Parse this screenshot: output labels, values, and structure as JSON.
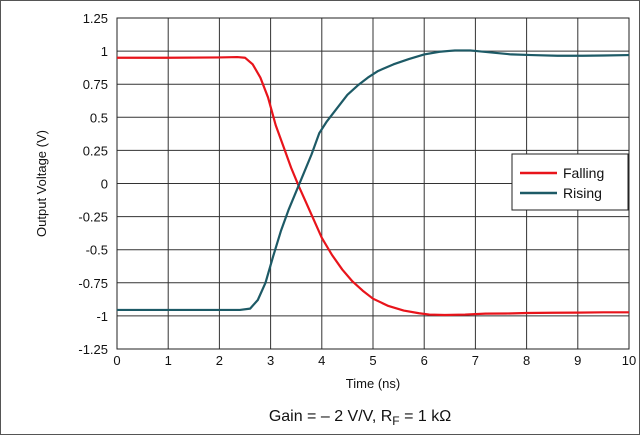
{
  "chart_data": {
    "type": "line",
    "xlabel": "Time (ns)",
    "ylabel": "Output Voltage (V)",
    "xlim": [
      0,
      10
    ],
    "ylim": [
      -1.25,
      1.25
    ],
    "x_ticks": [
      "0",
      "1",
      "2",
      "3",
      "4",
      "5",
      "6",
      "7",
      "8",
      "9",
      "10"
    ],
    "y_ticks": [
      "1.25",
      "1",
      "0.75",
      "0.5",
      "0.25",
      "0",
      "-0.25",
      "-0.5",
      "-0.75",
      "-1",
      "-1.25"
    ],
    "grid": true,
    "legend_position": "right",
    "series": [
      {
        "name": "Falling",
        "color": "#e8141b",
        "points": [
          [
            0,
            0.95
          ],
          [
            1,
            0.95
          ],
          [
            2,
            0.952
          ],
          [
            2.35,
            0.955
          ],
          [
            2.5,
            0.95
          ],
          [
            2.65,
            0.9
          ],
          [
            2.8,
            0.8
          ],
          [
            2.95,
            0.65
          ],
          [
            3.1,
            0.44
          ],
          [
            3.25,
            0.28
          ],
          [
            3.4,
            0.12
          ],
          [
            3.55,
            -0.02
          ],
          [
            3.7,
            -0.15
          ],
          [
            3.85,
            -0.28
          ],
          [
            4.0,
            -0.41
          ],
          [
            4.2,
            -0.54
          ],
          [
            4.4,
            -0.65
          ],
          [
            4.6,
            -0.74
          ],
          [
            4.8,
            -0.81
          ],
          [
            5.0,
            -0.87
          ],
          [
            5.3,
            -0.925
          ],
          [
            5.6,
            -0.96
          ],
          [
            5.9,
            -0.98
          ],
          [
            6.1,
            -0.99
          ],
          [
            6.4,
            -0.993
          ],
          [
            6.8,
            -0.99
          ],
          [
            7.2,
            -0.983
          ],
          [
            7.6,
            -0.982
          ],
          [
            8.0,
            -0.978
          ],
          [
            8.5,
            -0.976
          ],
          [
            9.0,
            -0.975
          ],
          [
            9.5,
            -0.973
          ],
          [
            10,
            -0.973
          ]
        ]
      },
      {
        "name": "Rising",
        "color": "#1d5a66",
        "points": [
          [
            0,
            -0.955
          ],
          [
            1,
            -0.955
          ],
          [
            2,
            -0.955
          ],
          [
            2.4,
            -0.955
          ],
          [
            2.6,
            -0.945
          ],
          [
            2.75,
            -0.88
          ],
          [
            2.9,
            -0.75
          ],
          [
            3.05,
            -0.55
          ],
          [
            3.2,
            -0.36
          ],
          [
            3.35,
            -0.2
          ],
          [
            3.5,
            -0.06
          ],
          [
            3.65,
            0.08
          ],
          [
            3.8,
            0.22
          ],
          [
            3.95,
            0.38
          ],
          [
            4.1,
            0.47
          ],
          [
            4.3,
            0.57
          ],
          [
            4.5,
            0.67
          ],
          [
            4.7,
            0.74
          ],
          [
            4.9,
            0.8
          ],
          [
            5.1,
            0.85
          ],
          [
            5.4,
            0.9
          ],
          [
            5.7,
            0.94
          ],
          [
            6.0,
            0.975
          ],
          [
            6.3,
            0.995
          ],
          [
            6.6,
            1.005
          ],
          [
            6.9,
            1.005
          ],
          [
            7.3,
            0.99
          ],
          [
            7.7,
            0.975
          ],
          [
            8.1,
            0.97
          ],
          [
            8.6,
            0.965
          ],
          [
            9.1,
            0.965
          ],
          [
            9.5,
            0.967
          ],
          [
            10,
            0.97
          ]
        ]
      }
    ],
    "caption": {
      "main": "Gain = – 2 V/V, R",
      "subscript": "F",
      "tail": " = 1 kΩ"
    }
  }
}
